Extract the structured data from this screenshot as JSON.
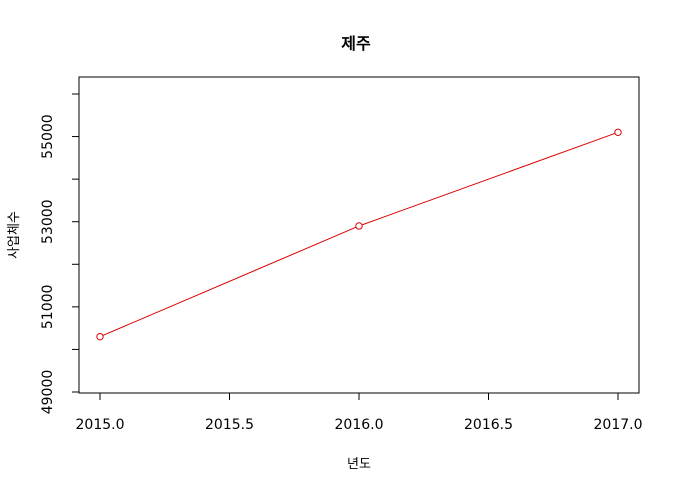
{
  "chart_data": {
    "type": "line",
    "title": "제주",
    "xlabel": "년도",
    "ylabel": "사업체수",
    "x": [
      2015,
      2016,
      2017
    ],
    "y": [
      50300,
      52900,
      55100
    ],
    "xlim": [
      2015.0,
      2017.0
    ],
    "ylim": [
      49000,
      56000
    ],
    "xticks": [
      "2015.0",
      "2015.5",
      "2016.0",
      "2016.5",
      "2017.0"
    ],
    "xtick_values": [
      2015.0,
      2015.5,
      2016.0,
      2016.5,
      2017.0
    ],
    "yticks": [
      "49000",
      "51000",
      "53000",
      "55000"
    ],
    "ytick_values": [
      49000,
      51000,
      53000,
      55000
    ],
    "yminor_values": [
      50000,
      52000,
      54000,
      56000
    ],
    "series_color": "#dd0000",
    "marker": "open-circle",
    "grid": false
  }
}
